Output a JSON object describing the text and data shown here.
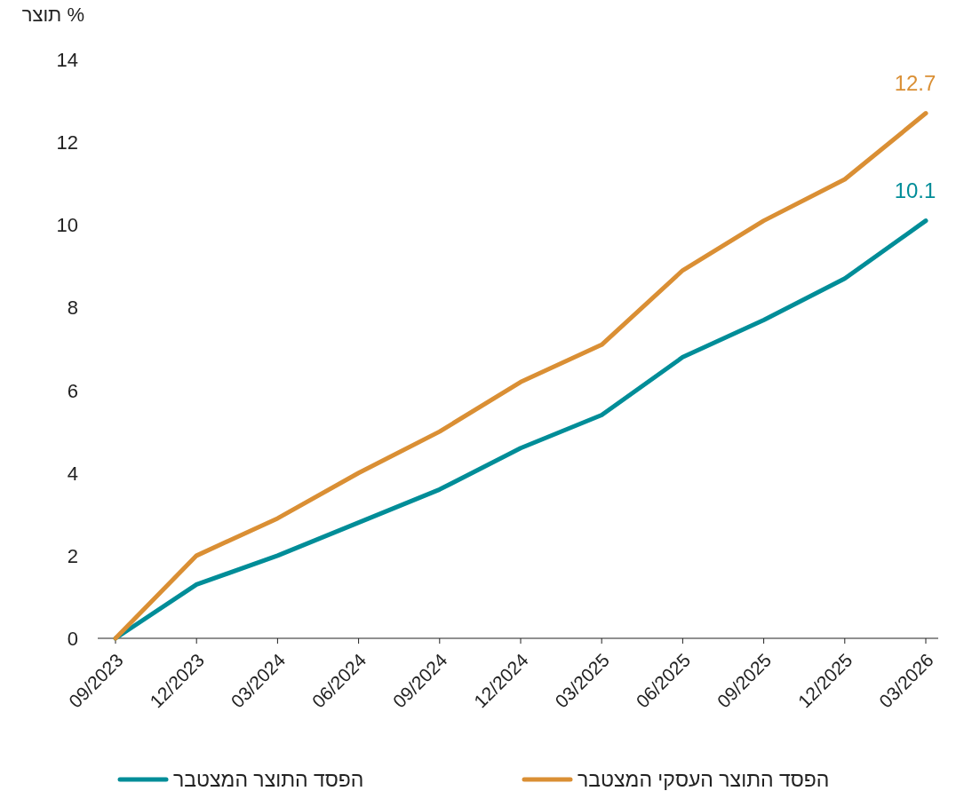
{
  "chart_data": {
    "type": "line",
    "ylabel": "% תוצר",
    "categories": [
      "09/2023",
      "12/2023",
      "03/2024",
      "06/2024",
      "09/2024",
      "12/2024",
      "03/2025",
      "06/2025",
      "09/2025",
      "12/2025",
      "03/2026"
    ],
    "series": [
      {
        "name": "הפסד התוצר המצטבר",
        "color": "#008d98",
        "values": [
          0,
          1.3,
          2.0,
          2.8,
          3.6,
          4.6,
          5.4,
          6.8,
          7.7,
          8.7,
          10.1
        ],
        "value_labels": [
          null,
          null,
          null,
          null,
          null,
          null,
          null,
          null,
          null,
          null,
          "10.1"
        ]
      },
      {
        "name": "הפסד התוצר העסקי המצטבר",
        "color": "#da8f34",
        "values": [
          0,
          2.0,
          2.9,
          4.0,
          5.0,
          6.2,
          7.1,
          8.9,
          10.1,
          11.1,
          12.7
        ],
        "value_labels": [
          null,
          null,
          null,
          null,
          null,
          null,
          null,
          null,
          null,
          null,
          "12.7"
        ]
      }
    ],
    "ylim": [
      0,
      14
    ],
    "yticks": [
      0,
      2,
      4,
      6,
      8,
      10,
      12,
      14
    ],
    "grid": false,
    "legend": "bottom",
    "marker": "none",
    "line_style": "solid"
  }
}
